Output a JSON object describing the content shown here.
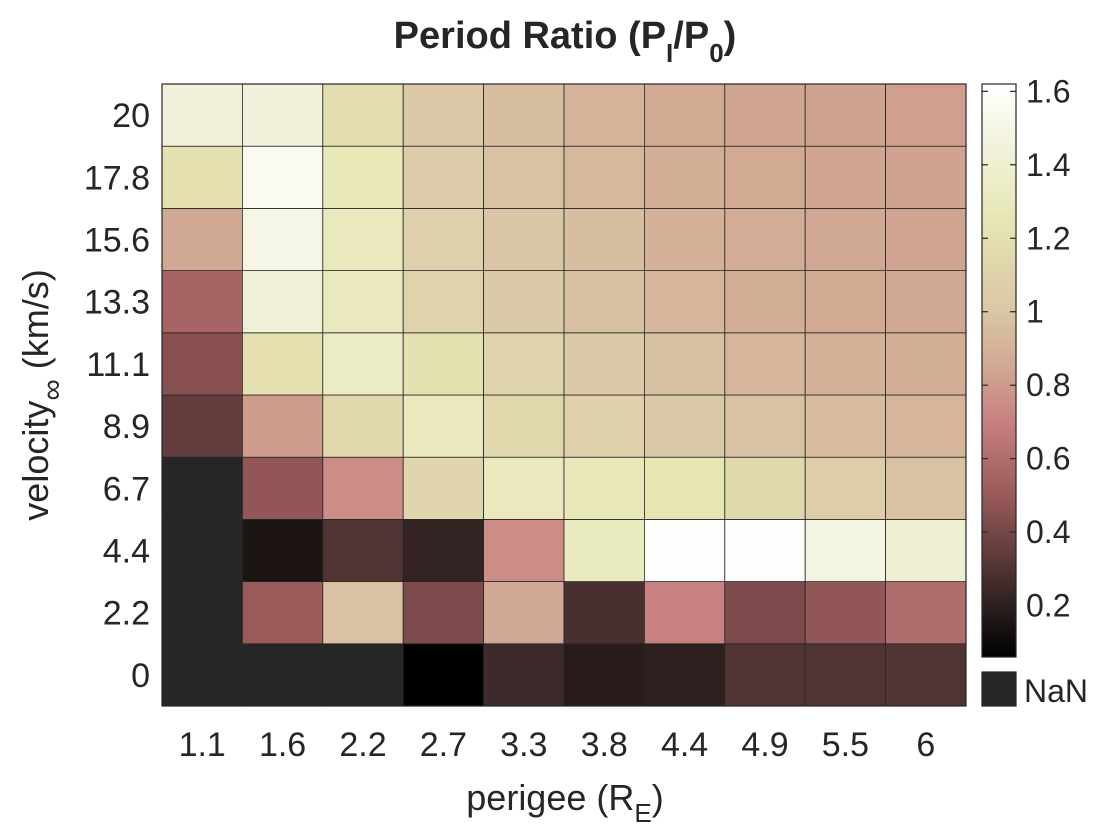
{
  "chart_data": {
    "type": "heatmap",
    "title": {
      "main": "Period Ratio (P",
      "sub1": "I",
      "mid": "/P",
      "sub2": "0",
      "end": ")"
    },
    "xlabel": {
      "main": "perigee (R",
      "sub": "E",
      "end": ")"
    },
    "ylabel": {
      "main": "velocity",
      "sub": "∞",
      "end": " (km/s)"
    },
    "x_categories": [
      "1.1",
      "1.6",
      "2.2",
      "2.7",
      "3.3",
      "3.8",
      "4.4",
      "4.9",
      "5.5",
      "6"
    ],
    "y_categories": [
      "0",
      "2.2",
      "4.4",
      "6.7",
      "8.9",
      "11.1",
      "13.3",
      "15.6",
      "17.8",
      "20"
    ],
    "values": [
      [
        null,
        null,
        null,
        0.05,
        0.25,
        0.18,
        0.2,
        0.3,
        0.3,
        0.3
      ],
      [
        null,
        0.5,
        0.98,
        0.42,
        0.85,
        0.28,
        0.7,
        0.42,
        0.48,
        0.6
      ],
      [
        null,
        0.15,
        0.3,
        0.22,
        0.75,
        1.32,
        1.6,
        1.6,
        1.48,
        1.4
      ],
      [
        null,
        0.48,
        0.75,
        1.12,
        1.3,
        1.28,
        1.25,
        1.15,
        1.06,
        0.98
      ],
      [
        0.35,
        0.8,
        1.15,
        1.3,
        1.15,
        1.08,
        1.02,
        0.98,
        0.95,
        0.92
      ],
      [
        0.45,
        1.2,
        1.35,
        1.22,
        1.1,
        1.02,
        0.97,
        0.92,
        0.9,
        0.88
      ],
      [
        0.55,
        1.42,
        1.3,
        1.1,
        1.03,
        0.97,
        0.92,
        0.88,
        0.86,
        0.85
      ],
      [
        0.85,
        1.5,
        1.3,
        1.08,
        1.0,
        0.96,
        0.9,
        0.87,
        0.85,
        0.84
      ],
      [
        1.2,
        1.55,
        1.28,
        1.05,
        0.98,
        0.93,
        0.88,
        0.86,
        0.84,
        0.83
      ],
      [
        1.45,
        1.45,
        1.18,
        1.02,
        0.96,
        0.91,
        0.86,
        0.84,
        0.83,
        0.82
      ]
    ],
    "colorbar": {
      "range": [
        0.06,
        1.62
      ],
      "ticks": [
        "0.2",
        "0.4",
        "0.6",
        "0.8",
        "1",
        "1.2",
        "1.4",
        "1.6"
      ],
      "tick_values": [
        0.2,
        0.4,
        0.6,
        0.8,
        1.0,
        1.2,
        1.4,
        1.6
      ],
      "stops": [
        {
          "v": 0.06,
          "c": "#000000"
        },
        {
          "v": 0.25,
          "c": "#3e2a2a"
        },
        {
          "v": 0.5,
          "c": "#9a5a5a"
        },
        {
          "v": 0.7,
          "c": "#c88080"
        },
        {
          "v": 0.85,
          "c": "#d1a893"
        },
        {
          "v": 1.0,
          "c": "#dac6a6"
        },
        {
          "v": 1.25,
          "c": "#e6e6b3"
        },
        {
          "v": 1.45,
          "c": "#f2f2dc"
        },
        {
          "v": 1.62,
          "c": "#ffffff"
        }
      ]
    },
    "nan_label": "NaN",
    "nan_color": "#262626",
    "grid": true
  }
}
